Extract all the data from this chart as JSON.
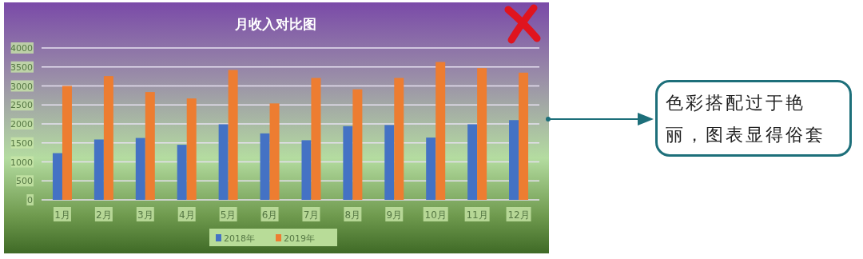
{
  "chart_data": {
    "type": "bar",
    "title": "月收入对比图",
    "categories": [
      "1月",
      "2月",
      "3月",
      "4月",
      "5月",
      "6月",
      "7月",
      "8月",
      "9月",
      "10月",
      "11月",
      "12月"
    ],
    "series": [
      {
        "name": "2018年",
        "color": "#4472c4",
        "values": [
          1230,
          1590,
          1630,
          1450,
          1990,
          1750,
          1570,
          1940,
          1970,
          1640,
          1990,
          2100
        ]
      },
      {
        "name": "2019年",
        "color": "#ed7d31",
        "values": [
          3000,
          3260,
          2840,
          2670,
          3420,
          2540,
          3210,
          2910,
          3210,
          3630,
          3470,
          3350
        ]
      }
    ],
    "ylim": [
      0,
      4000
    ],
    "yticks": [
      0,
      500,
      1000,
      1500,
      2000,
      2500,
      3000,
      3500,
      4000
    ],
    "grid": "y",
    "legend": "bottom",
    "annotations": [
      "色彩搭配过于艳丽，图表显得俗套"
    ]
  }
}
